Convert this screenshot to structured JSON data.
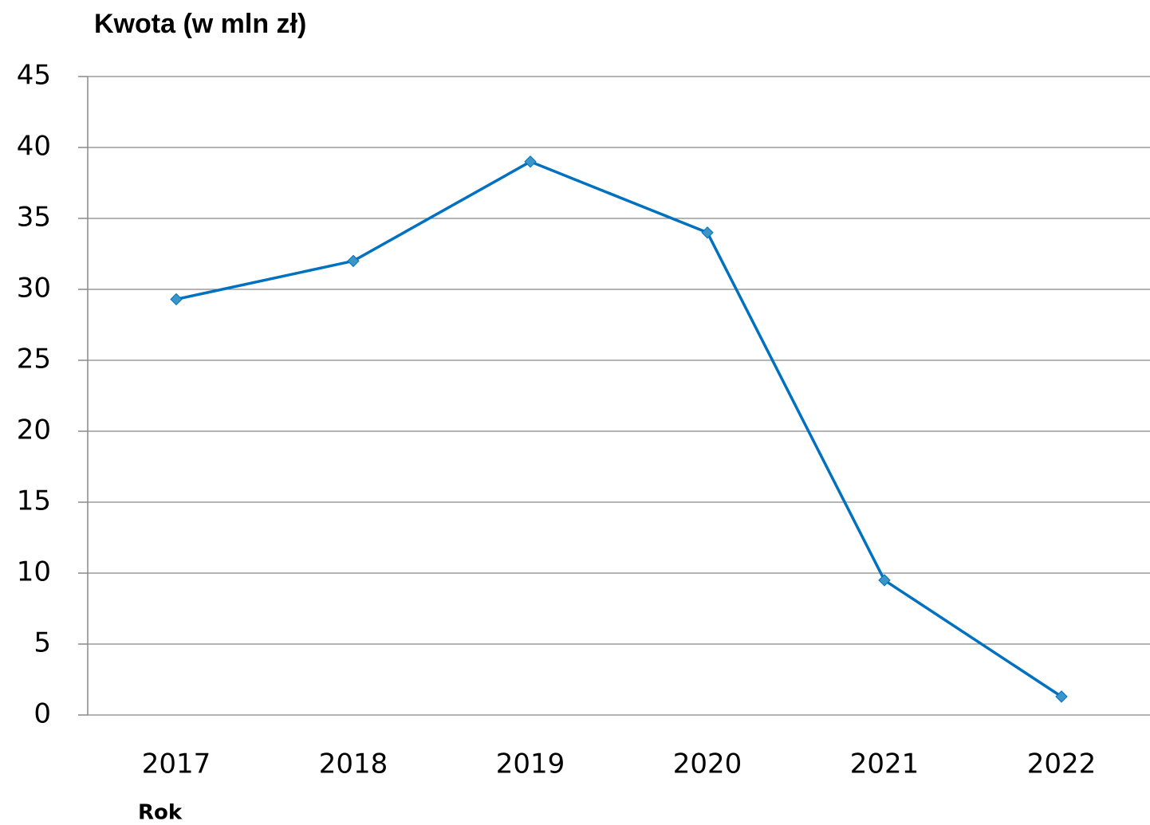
{
  "chart_data": {
    "type": "line",
    "y_label": "Kwota (w mln zł)",
    "x_label": "Rok",
    "categories": [
      "2017",
      "2018",
      "2019",
      "2020",
      "2021",
      "2022"
    ],
    "series": [
      {
        "name": "Kwota",
        "color": "#0070c0",
        "marker_color": "#3a96c8",
        "values": [
          29.3,
          32,
          39,
          34,
          9.5,
          1.3
        ]
      }
    ],
    "ylim": [
      0,
      45
    ],
    "yticks": [
      0,
      5,
      10,
      15,
      20,
      25,
      30,
      35,
      40,
      45
    ],
    "grid": true
  }
}
